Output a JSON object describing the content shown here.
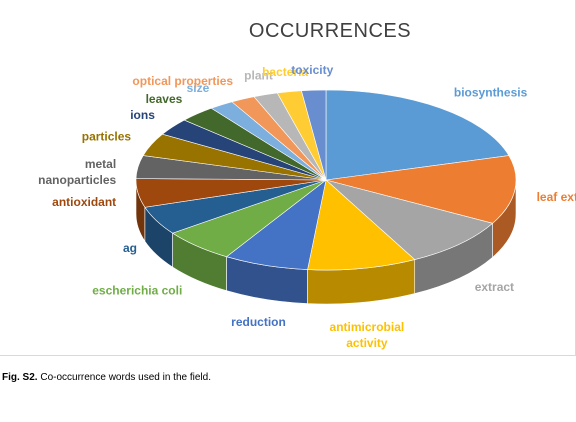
{
  "chart_data": {
    "type": "pie",
    "title": "OCCURRENCES",
    "three_d": true,
    "categories": [
      "biosynthesis",
      "leaf extract",
      "extract",
      "antimicrobial activity",
      "reduction",
      "escherichia coli",
      "ag",
      "antioxidant",
      "metal nanoparticles",
      "particles",
      "ions",
      "leaves",
      "size",
      "optical properties",
      "plant",
      "bacteria",
      "toxicity"
    ],
    "values": [
      20,
      12,
      9,
      9,
      7,
      6,
      5,
      5,
      4,
      4,
      3,
      3,
      2,
      2,
      2,
      2,
      2
    ],
    "colors": [
      "#5b9bd5",
      "#ed7d31",
      "#a5a5a5",
      "#ffc000",
      "#4472c4",
      "#70ad47",
      "#255e91",
      "#9e480e",
      "#636363",
      "#997300",
      "#264478",
      "#43682b",
      "#7cafdd",
      "#f1975a",
      "#b7b7b7",
      "#ffcd33",
      "#698ed0"
    ],
    "legend": "none"
  },
  "caption": {
    "prefix": "Fig. S2.",
    "text": " Co-occurrence words used in the field."
  }
}
